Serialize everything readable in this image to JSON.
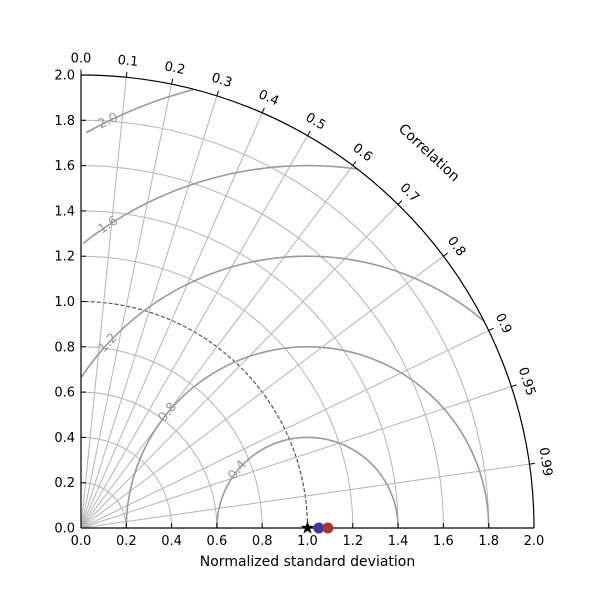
{
  "chart_data": {
    "type": "scatter",
    "subtype": "taylor-diagram",
    "title": "",
    "xlabel": "Normalized standard deviation",
    "angular_label": "Correlation",
    "ylim": [
      0,
      2.0
    ],
    "xlim": [
      0,
      2.0
    ],
    "grid": true,
    "std_ticks": [
      "0.0",
      "0.2",
      "0.4",
      "0.6",
      "0.8",
      "1.0",
      "1.2",
      "1.4",
      "1.6",
      "1.8",
      "2.0"
    ],
    "correlation_ticks": [
      {
        "value": 0.0,
        "label": "0.0"
      },
      {
        "value": 0.1,
        "label": "0.1"
      },
      {
        "value": 0.2,
        "label": "0.2"
      },
      {
        "value": 0.3,
        "label": "0.3"
      },
      {
        "value": 0.4,
        "label": "0.4"
      },
      {
        "value": 0.5,
        "label": "0.5"
      },
      {
        "value": 0.6,
        "label": "0.6"
      },
      {
        "value": 0.7,
        "label": "0.7"
      },
      {
        "value": 0.8,
        "label": "0.8"
      },
      {
        "value": 0.9,
        "label": "0.9"
      },
      {
        "value": 0.95,
        "label": "0.95"
      },
      {
        "value": 0.99,
        "label": "0.99"
      }
    ],
    "std_grid_circles": [
      0.2,
      0.4,
      0.6,
      0.8,
      1.0,
      1.2,
      1.4,
      1.6,
      1.8
    ],
    "rms_contours": [
      0.4,
      0.8,
      1.2,
      1.6,
      2.0
    ],
    "rms_labels": [
      {
        "value": 0.4,
        "label": "0.4"
      },
      {
        "value": 0.8,
        "label": "0.8"
      },
      {
        "value": 1.2,
        "label": "1.2"
      },
      {
        "value": 1.6,
        "label": "1.6"
      },
      {
        "value": 2.0,
        "label": "2.0"
      }
    ],
    "reference": {
      "std": 1.0,
      "correlation": 1.0,
      "marker": "star",
      "color": "#000000"
    },
    "points": [
      {
        "std": 1.05,
        "correlation": 1.0,
        "color": "#3a3aa0"
      },
      {
        "std": 1.09,
        "correlation": 1.0,
        "color": "#b03030"
      }
    ],
    "colors": {
      "grid": "#b4b4b4",
      "contour": "#9a9a9a",
      "frame": "#000000"
    }
  }
}
